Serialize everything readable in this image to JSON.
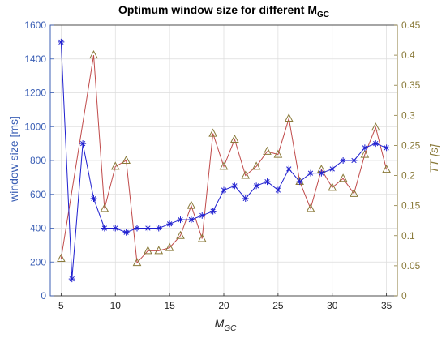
{
  "chart_data": {
    "type": "line",
    "title": "Optimum window size for different M",
    "title_sub": "GC",
    "xlabel": "M",
    "xlabel_sub": "GC",
    "ylabel_left": "window size [ms]",
    "ylabel_right": "TT [s]",
    "xlim": [
      4,
      36
    ],
    "ylim_left": [
      0,
      1600
    ],
    "ylim_right": [
      0,
      0.45
    ],
    "xticks": [
      "5",
      "10",
      "15",
      "20",
      "25",
      "30",
      "35"
    ],
    "yticks_left": [
      "0",
      "200",
      "400",
      "600",
      "800",
      "1000",
      "1200",
      "1400",
      "1600"
    ],
    "yticks_right": [
      "0",
      "0.05",
      "0.1",
      "0.15",
      "0.2",
      "0.25",
      "0.3",
      "0.35",
      "0.4",
      "0.45"
    ],
    "grid": true,
    "colors": {
      "left_axis": "#3b5fb5",
      "right_axis": "#8a7a3a",
      "series_window": "#1f1fcf",
      "series_tt": "#c04a4a",
      "markers_tt": "#8a7a3a"
    },
    "series": [
      {
        "axis": "left",
        "marker": "asterisk",
        "x": [
          5,
          6,
          7,
          8,
          9,
          10,
          11,
          12,
          13,
          14,
          15,
          16,
          17,
          18,
          19,
          20,
          21,
          22,
          23,
          24,
          25,
          26,
          27,
          28,
          29,
          30,
          31,
          32,
          33,
          34,
          35
        ],
        "values": [
          1500,
          100,
          900,
          575,
          400,
          400,
          375,
          400,
          400,
          400,
          425,
          450,
          450,
          475,
          500,
          625,
          650,
          575,
          650,
          675,
          625,
          750,
          675,
          725,
          725,
          750,
          800,
          800,
          875,
          900,
          875
        ]
      },
      {
        "axis": "right",
        "marker": "triangle",
        "x": [
          5,
          8,
          9,
          10,
          11,
          12,
          13,
          14,
          15,
          16,
          17,
          18,
          19,
          20,
          21,
          22,
          23,
          24,
          25,
          26,
          27,
          28,
          29,
          30,
          31,
          32,
          33,
          34,
          35
        ],
        "values": [
          0.062,
          0.4,
          0.145,
          0.215,
          0.225,
          0.055,
          0.075,
          0.075,
          0.08,
          0.1,
          0.15,
          0.095,
          0.27,
          0.215,
          0.26,
          0.2,
          0.215,
          0.24,
          0.235,
          0.295,
          0.19,
          0.145,
          0.21,
          0.18,
          0.195,
          0.17,
          0.235,
          0.28,
          0.21
        ]
      }
    ]
  }
}
